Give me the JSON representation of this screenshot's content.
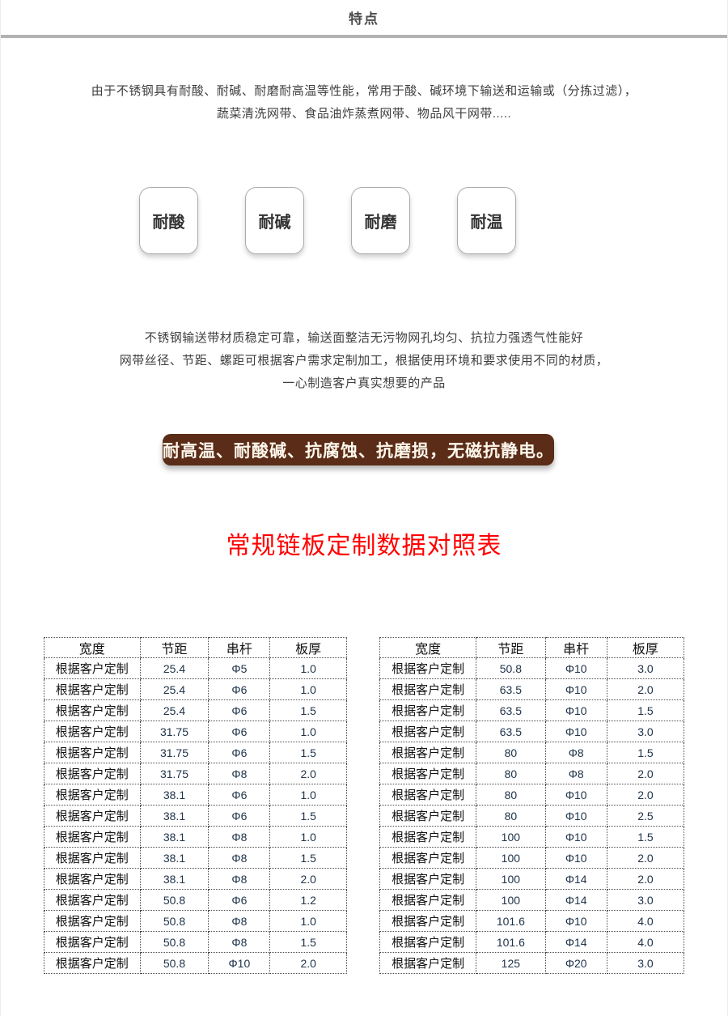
{
  "page": {
    "header_title": "特点",
    "colors": {
      "divider": "#b3b3b3",
      "banner_bg": "#5b2c17",
      "banner_text": "#fdf7ec",
      "title_red": "#ff0000"
    }
  },
  "intro": {
    "line1": "由于不锈钢具有耐酸、耐碱、耐磨耐高温等性能，常用于酸、碱环境下输送和运输或（分拣过滤），",
    "line2": "蔬菜清洗网带、食品油炸蒸煮网带、物品风干网带....."
  },
  "badges": [
    "耐酸",
    "耐碱",
    "耐磨",
    "耐温"
  ],
  "description": {
    "line1": "不锈钢输送带材质稳定可靠，输送面整洁无污物网孔均匀、抗拉力强透气性能好",
    "line2": "网带丝径、节距、螺距可根据客户需求定制加工，根据使用环境和要求使用不同的材质，",
    "line3": "一心制造客户真实想要的产品"
  },
  "banner": {
    "text": "耐高温、耐酸碱、抗腐蚀、抗磨损，无磁抗静电。"
  },
  "table_title": "常规链板定制数据对照表",
  "tables": [
    {
      "headers": [
        "宽度",
        "节距",
        "串杆",
        "板厚"
      ],
      "rows": [
        [
          "根据客户定制",
          "25.4",
          "Φ5",
          "1.0"
        ],
        [
          "根据客户定制",
          "25.4",
          "Φ6",
          "1.0"
        ],
        [
          "根据客户定制",
          "25.4",
          "Φ6",
          "1.5"
        ],
        [
          "根据客户定制",
          "31.75",
          "Φ6",
          "1.0"
        ],
        [
          "根据客户定制",
          "31.75",
          "Φ6",
          "1.5"
        ],
        [
          "根据客户定制",
          "31.75",
          "Φ8",
          "2.0"
        ],
        [
          "根据客户定制",
          "38.1",
          "Φ6",
          "1.0"
        ],
        [
          "根据客户定制",
          "38.1",
          "Φ6",
          "1.5"
        ],
        [
          "根据客户定制",
          "38.1",
          "Φ8",
          "1.0"
        ],
        [
          "根据客户定制",
          "38.1",
          "Φ8",
          "1.5"
        ],
        [
          "根据客户定制",
          "38.1",
          "Φ8",
          "2.0"
        ],
        [
          "根据客户定制",
          "50.8",
          "Φ6",
          "1.2"
        ],
        [
          "根据客户定制",
          "50.8",
          "Φ8",
          "1.0"
        ],
        [
          "根据客户定制",
          "50.8",
          "Φ8",
          "1.5"
        ],
        [
          "根据客户定制",
          "50.8",
          "Φ10",
          "2.0"
        ]
      ]
    },
    {
      "headers": [
        "宽度",
        "节距",
        "串杆",
        "板厚"
      ],
      "rows": [
        [
          "根据客户定制",
          "50.8",
          "Φ10",
          "3.0"
        ],
        [
          "根据客户定制",
          "63.5",
          "Φ10",
          "2.0"
        ],
        [
          "根据客户定制",
          "63.5",
          "Φ10",
          "1.5"
        ],
        [
          "根据客户定制",
          "63.5",
          "Φ10",
          "3.0"
        ],
        [
          "根据客户定制",
          "80",
          "Φ8",
          "1.5"
        ],
        [
          "根据客户定制",
          "80",
          "Φ8",
          "2.0"
        ],
        [
          "根据客户定制",
          "80",
          "Φ10",
          "2.0"
        ],
        [
          "根据客户定制",
          "80",
          "Φ10",
          "2.5"
        ],
        [
          "根据客户定制",
          "100",
          "Φ10",
          "1.5"
        ],
        [
          "根据客户定制",
          "100",
          "Φ10",
          "2.0"
        ],
        [
          "根据客户定制",
          "100",
          "Φ14",
          "2.0"
        ],
        [
          "根据客户定制",
          "100",
          "Φ14",
          "3.0"
        ],
        [
          "根据客户定制",
          "101.6",
          "Φ10",
          "4.0"
        ],
        [
          "根据客户定制",
          "101.6",
          "Φ14",
          "4.0"
        ],
        [
          "根据客户定制",
          "125",
          "Φ20",
          "3.0"
        ]
      ]
    }
  ]
}
